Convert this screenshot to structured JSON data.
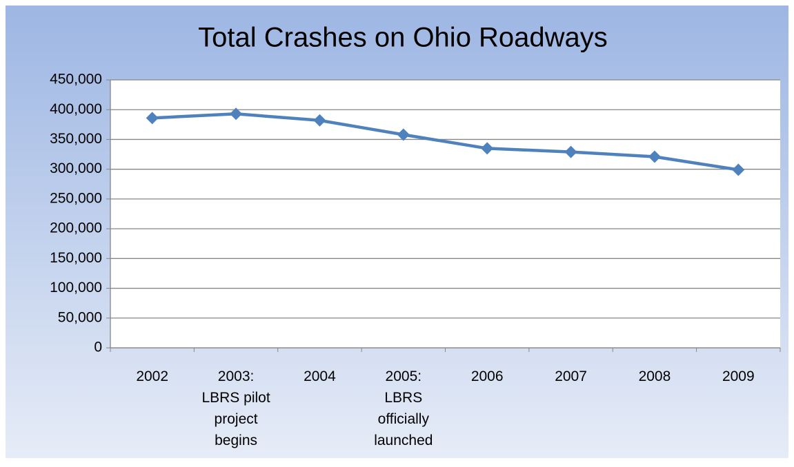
{
  "chart_data": {
    "type": "line",
    "title": "Total Crashes on Ohio Roadways",
    "categories": [
      "2002",
      "2003:\nLBRS pilot\nproject\nbegins",
      "2004",
      "2005:\nLBRS\nofficially\nlaunched",
      "2006",
      "2007",
      "2008",
      "2009"
    ],
    "series": [
      {
        "name": "Total Crashes",
        "color": "#4f81bd",
        "values": [
          386000,
          393000,
          382000,
          358000,
          335000,
          329000,
          321000,
          299000
        ]
      }
    ],
    "ylim": [
      0,
      450000
    ],
    "yticks": [
      0,
      {
        "value": 50000,
        "label": "50,000"
      },
      {
        "value": 100000,
        "label": "100,000"
      },
      {
        "value": 150000,
        "label": "150,000"
      },
      {
        "value": 200000,
        "label": "200,000"
      },
      {
        "value": 250000,
        "label": "250,000"
      },
      {
        "value": 300000,
        "label": "300,000"
      },
      {
        "value": 350000,
        "label": "350,000"
      },
      {
        "value": 400000,
        "label": "400,000"
      },
      {
        "value": 450000,
        "label": "450,000"
      }
    ],
    "grid": true
  }
}
